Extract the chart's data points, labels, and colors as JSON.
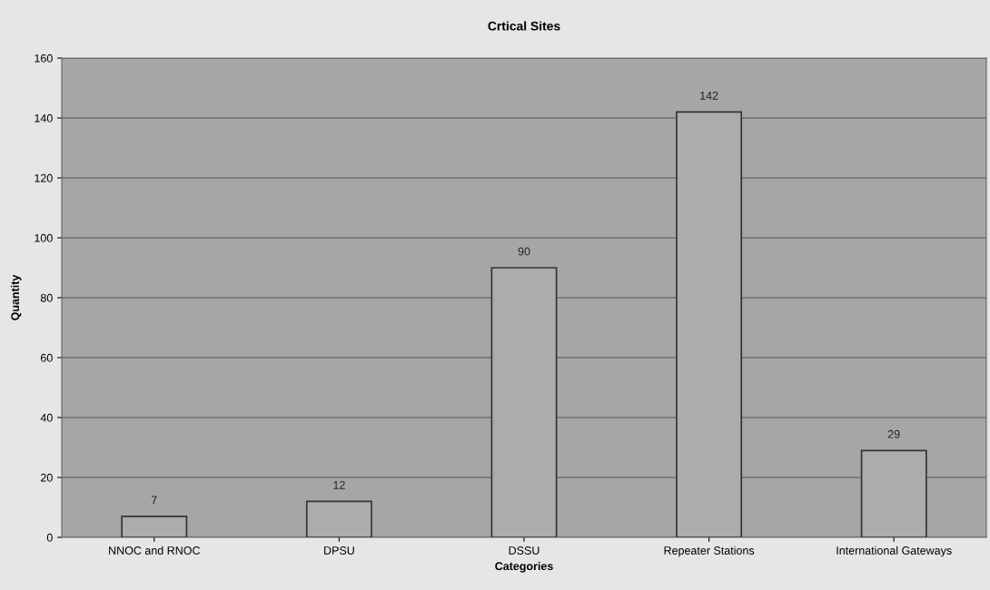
{
  "chart_data": {
    "type": "bar",
    "title": "Crtical Sites",
    "xlabel": "Categories",
    "ylabel": "Quantity",
    "categories": [
      "NNOC and RNOC",
      "DPSU",
      "DSSU",
      "Repeater Stations",
      "International Gateways"
    ],
    "values": [
      7,
      12,
      90,
      142,
      29
    ],
    "color": "#acacac",
    "ylim": [
      0,
      160
    ],
    "yticks": [
      0,
      20,
      40,
      60,
      80,
      100,
      120,
      140,
      160
    ],
    "grid": "y",
    "data_labels": true
  }
}
